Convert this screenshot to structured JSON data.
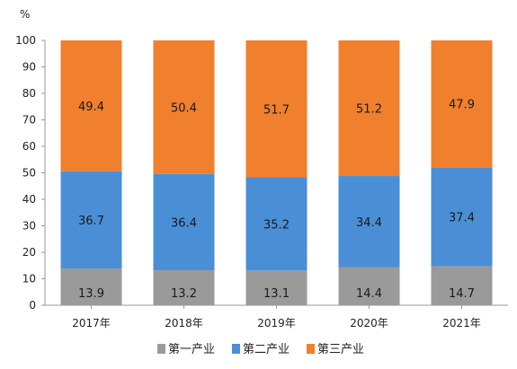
{
  "chart_data": {
    "type": "bar",
    "stacked": true,
    "unit": "%",
    "categories": [
      "2017年",
      "2018年",
      "2019年",
      "2020年",
      "2021年"
    ],
    "series": [
      {
        "name": "第一产业",
        "color": "#9a9a9a",
        "values": [
          13.9,
          13.2,
          13.1,
          14.4,
          14.7
        ]
      },
      {
        "name": "第二产业",
        "color": "#4a8fd6",
        "values": [
          36.7,
          36.4,
          35.2,
          34.4,
          37.4
        ]
      },
      {
        "name": "第三产业",
        "color": "#f07f2e",
        "values": [
          49.4,
          50.4,
          51.7,
          51.2,
          47.9
        ]
      }
    ],
    "ylim": [
      0,
      100
    ],
    "yticks": [
      0,
      10,
      20,
      30,
      40,
      50,
      60,
      70,
      80,
      90,
      100
    ],
    "grid": false,
    "legend_position": "bottom"
  }
}
